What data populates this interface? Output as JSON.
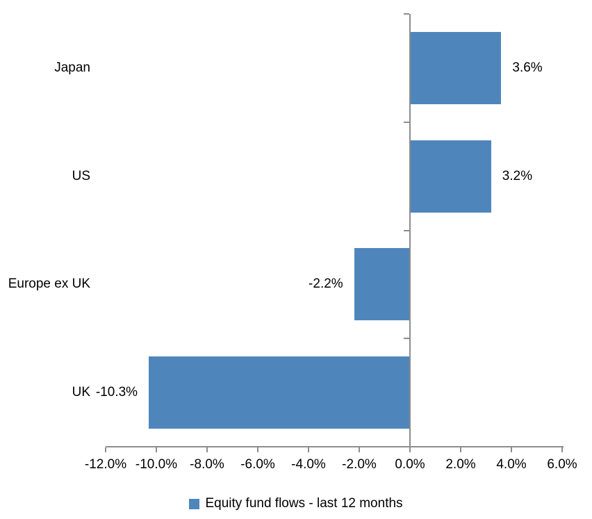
{
  "chart_data": {
    "type": "bar",
    "orientation": "horizontal",
    "title": "",
    "xlabel": "",
    "ylabel": "",
    "categories": [
      "Japan",
      "US",
      "Europe ex UK",
      "UK"
    ],
    "series": [
      {
        "name": "Equity fund flows - last 12 months",
        "values": [
          3.6,
          3.2,
          -2.2,
          -10.3
        ],
        "value_labels": [
          "3.6%",
          "3.2%",
          "-2.2%",
          "-10.3%"
        ]
      }
    ],
    "xlim": [
      -12.0,
      6.0
    ],
    "x_ticks": [
      -12,
      -10,
      -8,
      -6,
      -4,
      -2,
      0,
      2,
      4,
      6
    ],
    "x_tick_labels": [
      "-12.0%",
      "-10.0%",
      "-8.0%",
      "-6.0%",
      "-4.0%",
      "-2.0%",
      "0.0%",
      "2.0%",
      "4.0%",
      "6.0%"
    ],
    "grid": false,
    "legend": {
      "position": "bottom",
      "entries": [
        {
          "label": "Equity fund flows - last 12 months",
          "color": "#4E86BC"
        }
      ]
    },
    "colors": {
      "bar": "#4E86BC",
      "axis": "#8C8C8C",
      "text": "#000000",
      "background": "#FFFFFF"
    }
  }
}
